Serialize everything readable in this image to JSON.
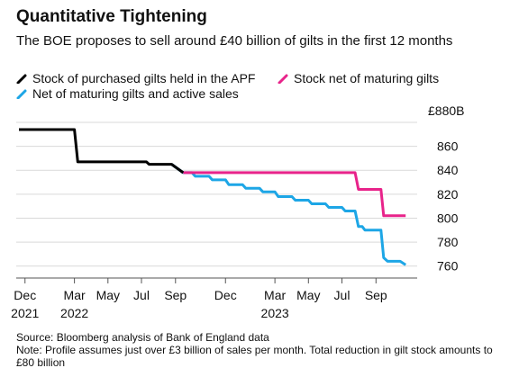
{
  "header": {
    "title": "Quantitative Tightening",
    "subtitle": "The BOE proposes to sell around £40 billion of gilts in the first 12 months"
  },
  "legend": [
    {
      "label": "Stock of purchased gilts held in the APF",
      "color": "#000000"
    },
    {
      "label": "Stock net of maturing gilts",
      "color": "#e8238a"
    },
    {
      "label": "Net of maturing gilts and active sales",
      "color": "#1da6e6"
    }
  ],
  "footer": {
    "source": "Source: Bloomberg analysis of Bank of England data",
    "note": "Note: Profile assumes just over £3 billion of sales per month. Total reduction in gilt stock amounts to £80 billion"
  },
  "chart_data": {
    "type": "line",
    "y_unit_label": "£880B",
    "ylim": [
      750,
      880
    ],
    "y_ticks": [
      760,
      780,
      800,
      820,
      840,
      860
    ],
    "xlim": [
      "2021-11-15",
      "2023-11-15"
    ],
    "x_ticks": [
      {
        "date": "2021-12-01",
        "label": "Dec",
        "year": "2021"
      },
      {
        "date": "2022-03-01",
        "label": "Mar",
        "year": "2022"
      },
      {
        "date": "2022-05-01",
        "label": "May",
        "year": ""
      },
      {
        "date": "2022-07-01",
        "label": "Jul",
        "year": ""
      },
      {
        "date": "2022-09-01",
        "label": "Sep",
        "year": ""
      },
      {
        "date": "2022-12-01",
        "label": "Dec",
        "year": ""
      },
      {
        "date": "2023-03-01",
        "label": "Mar",
        "year": "2023"
      },
      {
        "date": "2023-05-01",
        "label": "May",
        "year": ""
      },
      {
        "date": "2023-07-01",
        "label": "Jul",
        "year": ""
      },
      {
        "date": "2023-09-01",
        "label": "Sep",
        "year": ""
      }
    ],
    "series": [
      {
        "name": "Stock of purchased gilts held in the APF",
        "color": "#000000",
        "points": [
          [
            "2021-11-20",
            874
          ],
          [
            "2022-03-01",
            874
          ],
          [
            "2022-03-07",
            847
          ],
          [
            "2022-07-10",
            847
          ],
          [
            "2022-07-15",
            845
          ],
          [
            "2022-08-25",
            845
          ],
          [
            "2022-09-15",
            838
          ]
        ]
      },
      {
        "name": "Stock net of maturing gilts",
        "color": "#e8238a",
        "points": [
          [
            "2022-09-15",
            838
          ],
          [
            "2023-07-25",
            838
          ],
          [
            "2023-07-31",
            824
          ],
          [
            "2023-09-10",
            824
          ],
          [
            "2023-09-15",
            802
          ],
          [
            "2023-10-25",
            802
          ]
        ]
      },
      {
        "name": "Net of maturing gilts and active sales",
        "color": "#1da6e6",
        "points": [
          [
            "2022-08-25",
            845
          ],
          [
            "2022-09-15",
            838
          ],
          [
            "2022-10-01",
            838
          ],
          [
            "2022-10-07",
            835
          ],
          [
            "2022-11-01",
            835
          ],
          [
            "2022-11-07",
            832
          ],
          [
            "2022-12-01",
            832
          ],
          [
            "2022-12-07",
            828
          ],
          [
            "2023-01-01",
            828
          ],
          [
            "2023-01-07",
            825
          ],
          [
            "2023-02-01",
            825
          ],
          [
            "2023-02-07",
            822
          ],
          [
            "2023-03-01",
            822
          ],
          [
            "2023-03-07",
            818
          ],
          [
            "2023-04-01",
            818
          ],
          [
            "2023-04-07",
            815
          ],
          [
            "2023-05-01",
            815
          ],
          [
            "2023-05-07",
            812
          ],
          [
            "2023-06-01",
            812
          ],
          [
            "2023-06-07",
            809
          ],
          [
            "2023-07-01",
            809
          ],
          [
            "2023-07-07",
            806
          ],
          [
            "2023-07-25",
            806
          ],
          [
            "2023-07-31",
            793
          ],
          [
            "2023-08-07",
            793
          ],
          [
            "2023-08-12",
            790
          ],
          [
            "2023-09-10",
            790
          ],
          [
            "2023-09-15",
            767
          ],
          [
            "2023-09-22",
            764
          ],
          [
            "2023-10-15",
            764
          ],
          [
            "2023-10-25",
            761
          ]
        ]
      }
    ]
  }
}
